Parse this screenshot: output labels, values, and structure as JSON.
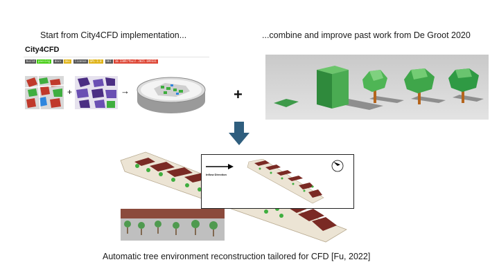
{
  "captions": {
    "left": "Start from City4CFD implementation...",
    "right": "...combine and improve past work from De Groot 2020",
    "bottom": "Automatic tree environment reconstruction tailored for CFD [Fu, 2022]"
  },
  "city4cfd": {
    "title": "City4CFD",
    "badges": [
      {
        "label": "build",
        "color": "#555555"
      },
      {
        "label": "passing",
        "color": "#4c1"
      },
      {
        "label": "docs",
        "color": "#555555"
      },
      {
        "label": "dev",
        "color": "#dfb317"
      },
      {
        "label": "license",
        "color": "#555555"
      },
      {
        "label": "GPL-3.0",
        "color": "#dfb317"
      },
      {
        "label": "DOI",
        "color": "#555555"
      },
      {
        "label": "10.3389/fbuil.2021.699331",
        "color": "#d43"
      }
    ],
    "plus_symbol": "+",
    "arrow_symbol": "→"
  },
  "combine_symbol": "+",
  "inset": {
    "inflow_label": "Inflow Direction"
  },
  "colors": {
    "down_arrow": "#2f5e7e",
    "building": "#7a2a24",
    "tree": "#3fae3f",
    "ground": "#ece4d4"
  }
}
